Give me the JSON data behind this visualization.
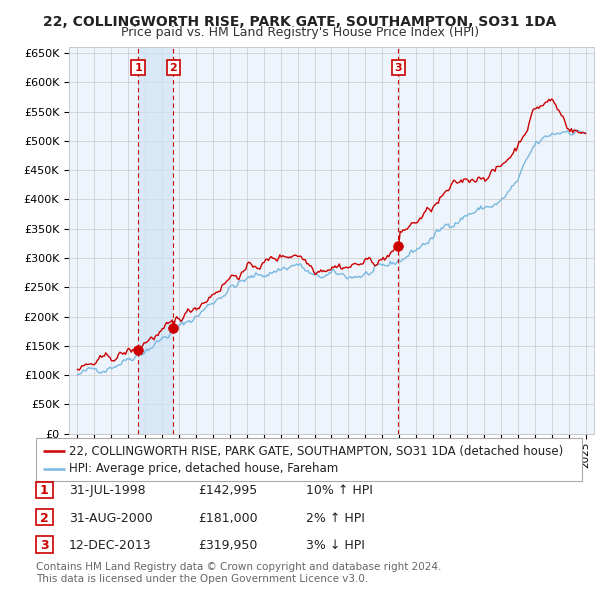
{
  "title": "22, COLLINGWORTH RISE, PARK GATE, SOUTHAMPTON, SO31 1DA",
  "subtitle": "Price paid vs. HM Land Registry's House Price Index (HPI)",
  "ylim": [
    0,
    660000
  ],
  "yticks": [
    0,
    50000,
    100000,
    150000,
    200000,
    250000,
    300000,
    350000,
    400000,
    450000,
    500000,
    550000,
    600000,
    650000
  ],
  "ytick_labels": [
    "£0",
    "£50K",
    "£100K",
    "£150K",
    "£200K",
    "£250K",
    "£300K",
    "£350K",
    "£400K",
    "£450K",
    "£500K",
    "£550K",
    "£600K",
    "£650K"
  ],
  "hpi_color": "#7ab8e0",
  "price_color": "#cc0000",
  "vline_color": "#cc0000",
  "grid_color": "#c8c8c8",
  "chart_bg": "#eef4fb",
  "shade_color": "#d0e4f5",
  "background_color": "#ffffff",
  "legend_border_color": "#888888",
  "sale1": {
    "date_num": 1998.58,
    "price": 142995,
    "label": "1"
  },
  "sale2": {
    "date_num": 2000.67,
    "price": 181000,
    "label": "2"
  },
  "sale3": {
    "date_num": 2013.95,
    "price": 319950,
    "label": "3"
  },
  "hpi_knots_x": [
    1995.0,
    1996.0,
    1997.0,
    1998.0,
    1999.0,
    2000.0,
    2001.0,
    2002.0,
    2003.0,
    2004.0,
    2005.0,
    2006.0,
    2007.0,
    2008.0,
    2009.0,
    2010.0,
    2011.0,
    2012.0,
    2013.0,
    2014.0,
    2015.0,
    2016.0,
    2017.0,
    2018.0,
    2019.0,
    2020.0,
    2021.0,
    2022.0,
    2023.0,
    2024.0,
    2025.0
  ],
  "hpi_knots_y": [
    100000,
    108000,
    118000,
    130000,
    145000,
    162000,
    180000,
    200000,
    225000,
    250000,
    262000,
    272000,
    282000,
    290000,
    265000,
    270000,
    268000,
    272000,
    278000,
    295000,
    315000,
    335000,
    360000,
    375000,
    385000,
    395000,
    430000,
    490000,
    510000,
    520000,
    515000
  ],
  "price_knots_x": [
    1995.0,
    1996.0,
    1997.0,
    1998.0,
    1998.58,
    1999.0,
    2000.0,
    2000.67,
    2001.0,
    2002.0,
    2003.0,
    2004.0,
    2005.0,
    2006.0,
    2007.0,
    2008.0,
    2009.0,
    2010.0,
    2011.0,
    2012.0,
    2013.0,
    2013.95,
    2014.0,
    2015.0,
    2016.0,
    2017.0,
    2018.0,
    2019.0,
    2020.0,
    2021.0,
    2022.0,
    2023.0,
    2024.0,
    2025.0
  ],
  "price_knots_y": [
    110000,
    118000,
    128000,
    140000,
    142995,
    158000,
    174000,
    181000,
    195000,
    218000,
    242000,
    268000,
    280000,
    292000,
    302000,
    310000,
    283000,
    290000,
    287000,
    292000,
    298000,
    319950,
    340000,
    362000,
    385000,
    415000,
    433000,
    443000,
    453000,
    493000,
    555000,
    570000,
    525000,
    510000
  ],
  "table_entries": [
    {
      "num": "1",
      "date": "31-JUL-1998",
      "price": "£142,995",
      "hpi": "10% ↑ HPI"
    },
    {
      "num": "2",
      "date": "31-AUG-2000",
      "price": "£181,000",
      "hpi": "2% ↑ HPI"
    },
    {
      "num": "3",
      "date": "12-DEC-2013",
      "price": "£319,950",
      "hpi": "3% ↓ HPI"
    }
  ],
  "legend_line1": "22, COLLINGWORTH RISE, PARK GATE, SOUTHAMPTON, SO31 1DA (detached house)",
  "legend_line2": "HPI: Average price, detached house, Fareham",
  "footer": "Contains HM Land Registry data © Crown copyright and database right 2024.\nThis data is licensed under the Open Government Licence v3.0.",
  "title_fontsize": 10,
  "subtitle_fontsize": 9,
  "tick_fontsize": 8,
  "legend_fontsize": 8.5,
  "table_fontsize": 9,
  "footer_fontsize": 7.5
}
